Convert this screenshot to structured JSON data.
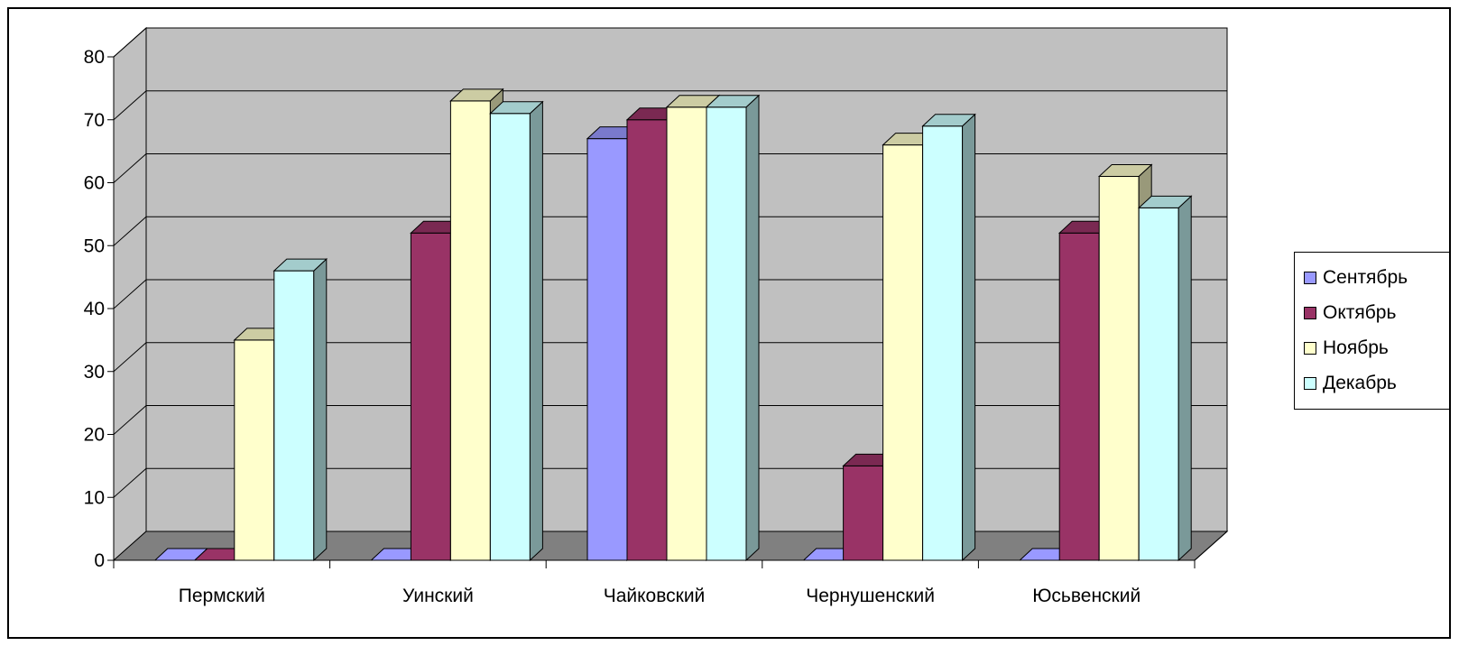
{
  "chart_data": {
    "type": "bar",
    "style": "3d-clustered-column",
    "title": "",
    "xlabel": "",
    "ylabel": "",
    "categories": [
      "Пермский",
      "Уинский",
      "Чайковский",
      "Чернушенский",
      "Юсьвенский"
    ],
    "ylim": [
      0,
      80
    ],
    "yticks": [
      "0",
      "10",
      "20",
      "30",
      "40",
      "50",
      "60",
      "70",
      "80"
    ],
    "grid": true,
    "legend_position": "right",
    "series": [
      {
        "name": "Сентябрь",
        "values": [
          0,
          0,
          67,
          0,
          0
        ],
        "color": "#9999ff",
        "top_color": "#7a7acc",
        "side_color": "#5c5c99"
      },
      {
        "name": "Октябрь",
        "values": [
          0,
          52,
          70,
          15,
          52
        ],
        "color": "#993366",
        "top_color": "#7a2952",
        "side_color": "#5c1f3d"
      },
      {
        "name": "Ноябрь",
        "values": [
          35,
          73,
          72,
          66,
          61
        ],
        "color": "#ffffcc",
        "top_color": "#cccca3",
        "side_color": "#99997a"
      },
      {
        "name": "Декабрь",
        "values": [
          46,
          71,
          72,
          69,
          56
        ],
        "color": "#ccffff",
        "top_color": "#a3cccc",
        "side_color": "#7a9999"
      }
    ],
    "colors": {
      "back_wall": "#c0c0c0",
      "floor": "#808080",
      "gridline": "#000000",
      "axis": "#000000"
    }
  }
}
